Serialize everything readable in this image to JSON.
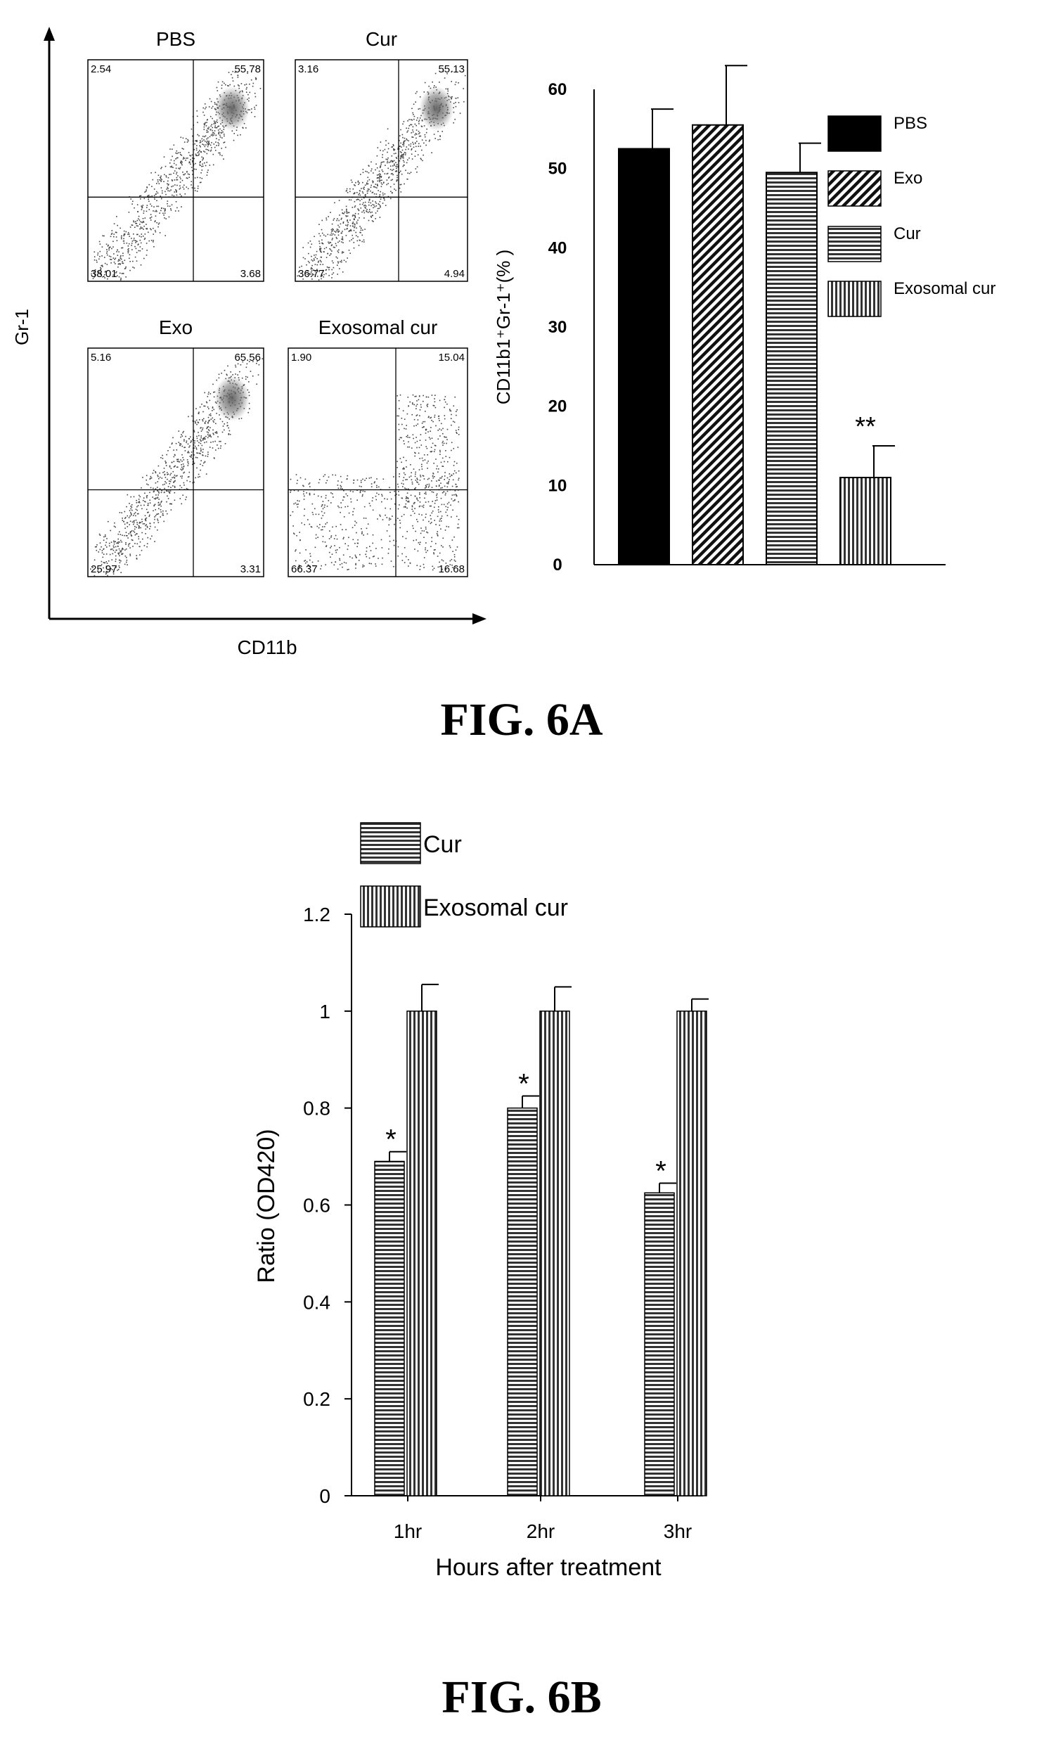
{
  "figure_6a": {
    "caption": "FIG. 6A",
    "flow_panel": {
      "x_axis_label": "CD11b",
      "y_axis_label": "Gr-1",
      "plots": [
        {
          "title": "PBS",
          "quadrants": {
            "ul": "2.54",
            "ur": "55.78",
            "ll": "38.01",
            "lr": "3.68"
          }
        },
        {
          "title": "Cur",
          "quadrants": {
            "ul": "3.16",
            "ur": "55.13",
            "ll": "36.77",
            "lr": "4.94"
          }
        },
        {
          "title": "Exo",
          "quadrants": {
            "ul": "5.16",
            "ur": "65.56",
            "ll": "25.97",
            "lr": "3.31"
          }
        },
        {
          "title": "Exosomal cur",
          "quadrants": {
            "ul": "1.90",
            "ur": "15.04",
            "ll": "66.37",
            "lr": "16.68"
          }
        }
      ]
    }
  },
  "figure_6b": {
    "caption": "FIG. 6B"
  },
  "chart_data": [
    {
      "type": "bar",
      "title": "",
      "xlabel": "",
      "ylabel": "CD11b1⁺Gr-1⁺(% )",
      "ylim": [
        0,
        60
      ],
      "yticks": [
        "0",
        "10",
        "20",
        "30",
        "40",
        "50",
        "60"
      ],
      "legend_position": "right",
      "series": [
        {
          "name": "PBS",
          "value": 52.5,
          "error": 5,
          "pattern": "solid",
          "annotation": ""
        },
        {
          "name": "Exo",
          "value": 55.5,
          "error": 7.5,
          "pattern": "diagonal",
          "annotation": ""
        },
        {
          "name": "Cur",
          "value": 49.5,
          "error": 3.7,
          "pattern": "horizontal",
          "annotation": ""
        },
        {
          "name": "Exosomal cur",
          "value": 11,
          "error": 4,
          "pattern": "vertical",
          "annotation": "**"
        }
      ]
    },
    {
      "type": "bar",
      "title": "",
      "xlabel": "Hours after treatment",
      "ylabel": "Ratio (OD420)",
      "ylim": [
        0,
        1.2
      ],
      "yticks": [
        "0",
        "0.2",
        "0.4",
        "0.6",
        "0.8",
        "1",
        "1.2"
      ],
      "categories": [
        "1hr",
        "2hr",
        "3hr"
      ],
      "legend_position": "top-left",
      "series": [
        {
          "name": "Cur",
          "pattern": "horizontal",
          "values": [
            0.69,
            0.8,
            0.625
          ],
          "errors": [
            0.02,
            0.025,
            0.02
          ],
          "annotations": [
            "*",
            "*",
            "*"
          ]
        },
        {
          "name": "Exosomal cur",
          "pattern": "vertical",
          "values": [
            1.0,
            1.0,
            1.0
          ],
          "errors": [
            0.055,
            0.05,
            0.025
          ],
          "annotations": [
            "",
            "",
            ""
          ]
        }
      ]
    }
  ]
}
